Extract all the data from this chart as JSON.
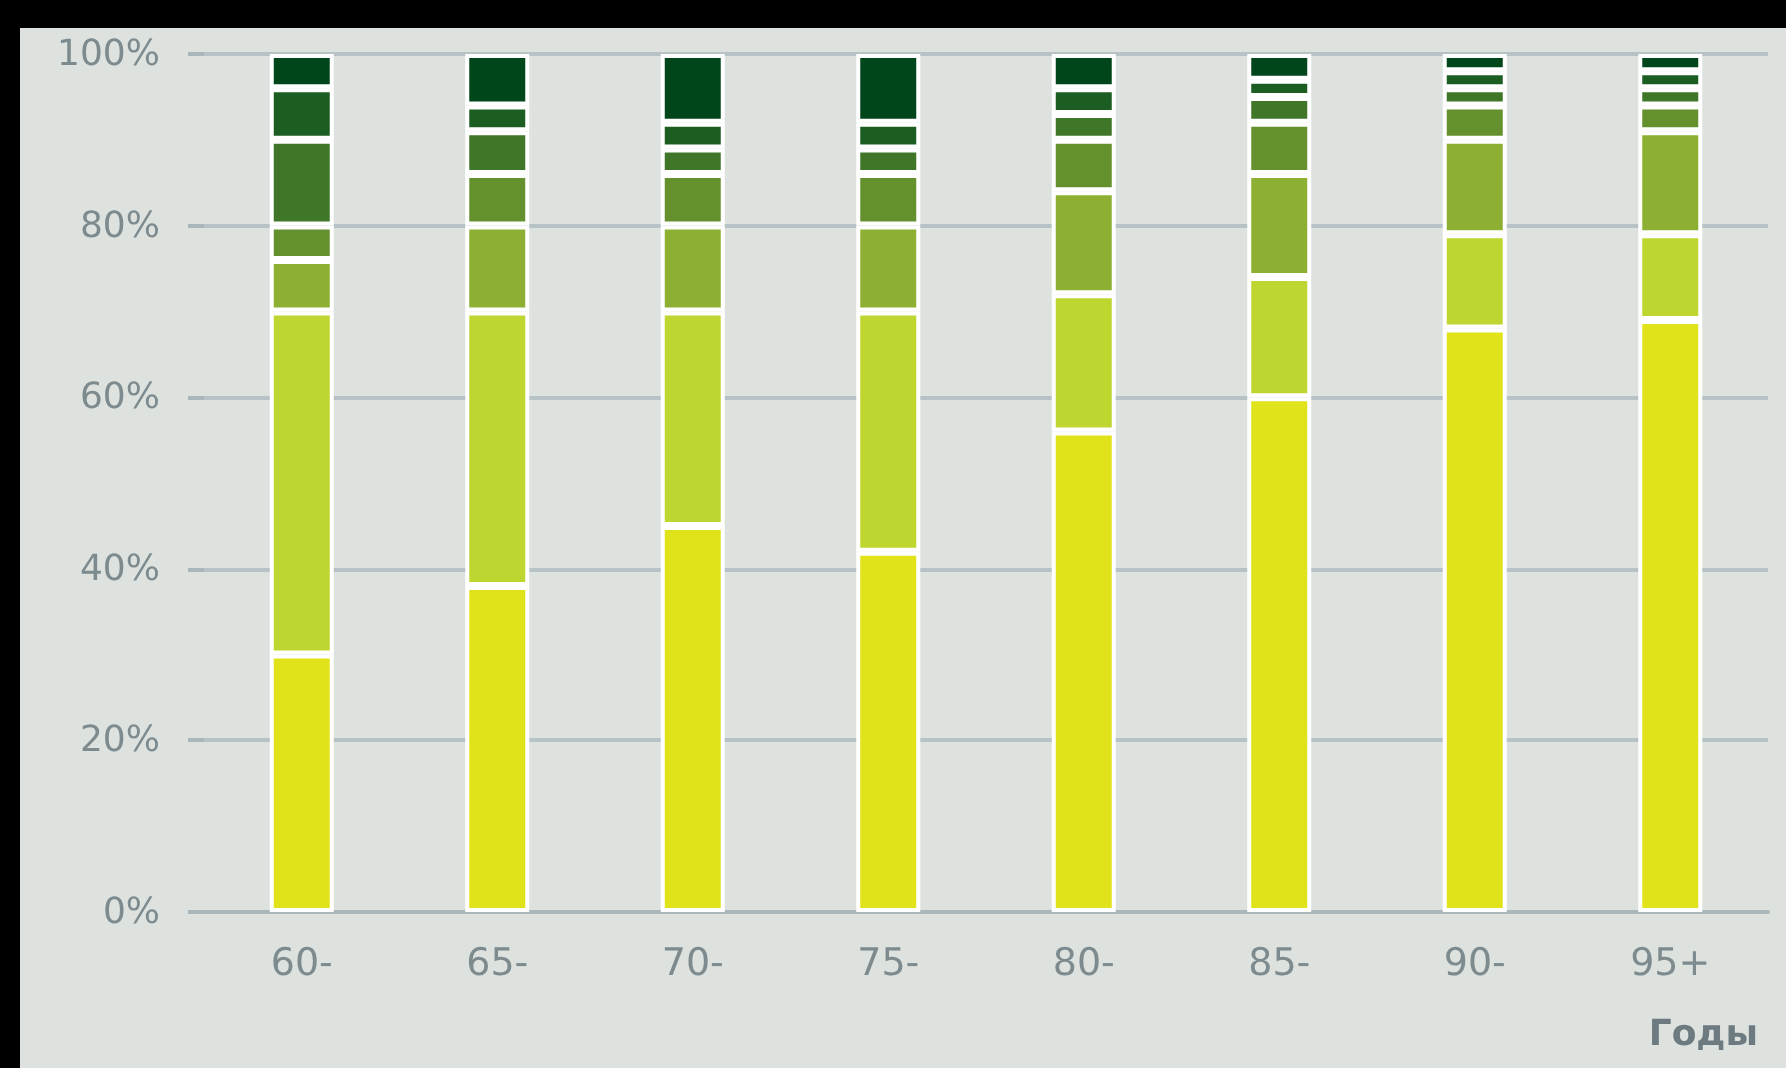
{
  "chart_data": {
    "type": "bar",
    "stacked": true,
    "xlabel": "Годы",
    "categories": [
      "60-",
      "65-",
      "70-",
      "75-",
      "80-",
      "85-",
      "90-",
      "95+"
    ],
    "series": [
      {
        "color": "#e0e31a",
        "values": [
          30,
          38,
          45,
          42,
          56,
          60,
          68,
          69
        ]
      },
      {
        "color": "#c0d630",
        "values": [
          40,
          32,
          25,
          28,
          16,
          14,
          11,
          10
        ]
      },
      {
        "color": "#8db032",
        "values": [
          6,
          10,
          10,
          10,
          12,
          12,
          11,
          12
        ]
      },
      {
        "color": "#64912e",
        "values": [
          4,
          6,
          6,
          6,
          6,
          6,
          4,
          3
        ]
      },
      {
        "color": "#3f7628",
        "values": [
          10,
          5,
          3,
          3,
          3,
          3,
          2,
          2
        ]
      },
      {
        "color": "#1c5e22",
        "values": [
          6,
          3,
          3,
          3,
          3,
          2,
          2,
          2
        ]
      },
      {
        "color": "#00461a",
        "values": [
          4,
          6,
          8,
          8,
          4,
          3,
          2,
          2
        ]
      }
    ],
    "ylim": [
      0,
      100
    ],
    "yticks": [
      {
        "value": 0,
        "label": "0%"
      },
      {
        "value": 20,
        "label": "20%"
      },
      {
        "value": 40,
        "label": "40%"
      },
      {
        "value": 60,
        "label": "60%"
      },
      {
        "value": 80,
        "label": "80%"
      },
      {
        "value": 100,
        "label": "100%"
      }
    ],
    "grid": "y"
  }
}
